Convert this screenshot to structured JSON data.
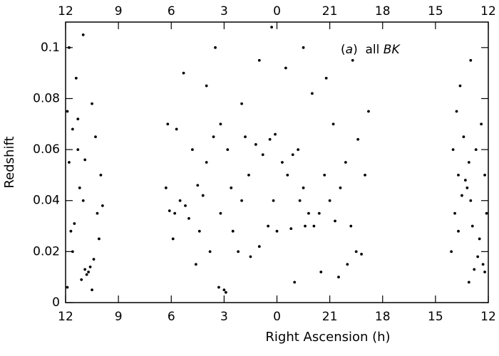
{
  "chart_data": {
    "type": "scatter",
    "xlabel": "Right Ascension (h)",
    "ylabel": "Redshift",
    "annotation": [
      "(",
      "a",
      ")  all ",
      "BK"
    ],
    "color": "#000000",
    "xlim": [
      12,
      -12
    ],
    "ylim": [
      0,
      0.11
    ],
    "xticks": [
      12,
      9,
      6,
      3,
      0,
      {
        "value": -3,
        "label": "21"
      },
      {
        "value": -6,
        "label": "18"
      },
      {
        "value": -9,
        "label": "15"
      },
      {
        "value": -12,
        "label": "12"
      }
    ],
    "yticks": [
      0,
      0.02,
      0.04,
      0.06,
      0.08,
      0.1
    ],
    "x": [
      11.9,
      11.7,
      11.5,
      11.8,
      11.3,
      11.6,
      11.2,
      11.0,
      10.9,
      10.7,
      10.8,
      10.6,
      11.1,
      10.4,
      10.2,
      10.0,
      10.3,
      10.5,
      11.4,
      11.8,
      11.0,
      10.1,
      9.9,
      11.9,
      11.6,
      10.5,
      10.9,
      11.3,
      6.3,
      6.1,
      5.8,
      5.5,
      5.2,
      5.0,
      4.8,
      5.7,
      6.2,
      4.5,
      4.2,
      4.0,
      3.6,
      3.2,
      2.8,
      3.0,
      3.3,
      2.9,
      4.6,
      3.8,
      2.5,
      2.0,
      1.6,
      1.2,
      0.8,
      0.4,
      0.1,
      -0.3,
      -0.6,
      -0.9,
      -1.2,
      -1.5,
      -1.8,
      -2.1,
      -2.4,
      -2.7,
      -3.0,
      -3.3,
      -3.6,
      -3.9,
      -4.2,
      -4.5,
      -4.8,
      -5.0,
      -5.2,
      0.5,
      0.0,
      -0.8,
      -1.6,
      1.0,
      1.5,
      2.2,
      -2.5,
      -3.5,
      -4.0,
      -1.0,
      4.0,
      2.0,
      -0.5,
      -1.5,
      0.3,
      -2.8,
      -4.3,
      5.3,
      3.5,
      1.0,
      -3.2,
      -2.0,
      0.2,
      -1.3,
      1.8,
      -4.6,
      5.9,
      4.4,
      3.2,
      2.6,
      -9.9,
      -10.1,
      -10.3,
      -10.5,
      -10.7,
      -10.8,
      -10.9,
      -11.0,
      -11.1,
      -11.3,
      -11.5,
      -11.7,
      -11.8,
      -11.2,
      -10.6,
      -10.2,
      -10.4,
      -11.0,
      -11.6,
      -11.9,
      -10.0,
      -10.9,
      -11.4,
      -10.3,
      -11.8
    ],
    "values": [
      0.006,
      0.028,
      0.031,
      0.055,
      0.06,
      0.068,
      0.045,
      0.04,
      0.013,
      0.012,
      0.011,
      0.014,
      0.009,
      0.017,
      0.035,
      0.05,
      0.065,
      0.078,
      0.088,
      0.1,
      0.105,
      0.025,
      0.038,
      0.075,
      0.02,
      0.005,
      0.056,
      0.072,
      0.045,
      0.036,
      0.035,
      0.04,
      0.038,
      0.033,
      0.06,
      0.068,
      0.07,
      0.046,
      0.042,
      0.055,
      0.065,
      0.07,
      0.06,
      0.005,
      0.006,
      0.004,
      0.015,
      0.02,
      0.028,
      0.04,
      0.05,
      0.062,
      0.058,
      0.064,
      0.066,
      0.055,
      0.05,
      0.058,
      0.06,
      0.045,
      0.035,
      0.03,
      0.035,
      0.05,
      0.04,
      0.032,
      0.045,
      0.055,
      0.03,
      0.02,
      0.019,
      0.05,
      0.075,
      0.03,
      0.028,
      0.029,
      0.03,
      0.022,
      0.018,
      0.02,
      0.012,
      0.01,
      0.015,
      0.008,
      0.085,
      0.078,
      0.092,
      0.1,
      0.108,
      0.088,
      0.095,
      0.09,
      0.1,
      0.095,
      0.07,
      0.082,
      0.04,
      0.04,
      0.065,
      0.064,
      0.025,
      0.028,
      0.035,
      0.045,
      0.02,
      0.035,
      0.05,
      0.042,
      0.048,
      0.045,
      0.055,
      0.04,
      0.03,
      0.06,
      0.025,
      0.015,
      0.012,
      0.013,
      0.065,
      0.075,
      0.085,
      0.095,
      0.07,
      0.035,
      0.06,
      0.008,
      0.018,
      0.028,
      0.05
    ]
  }
}
